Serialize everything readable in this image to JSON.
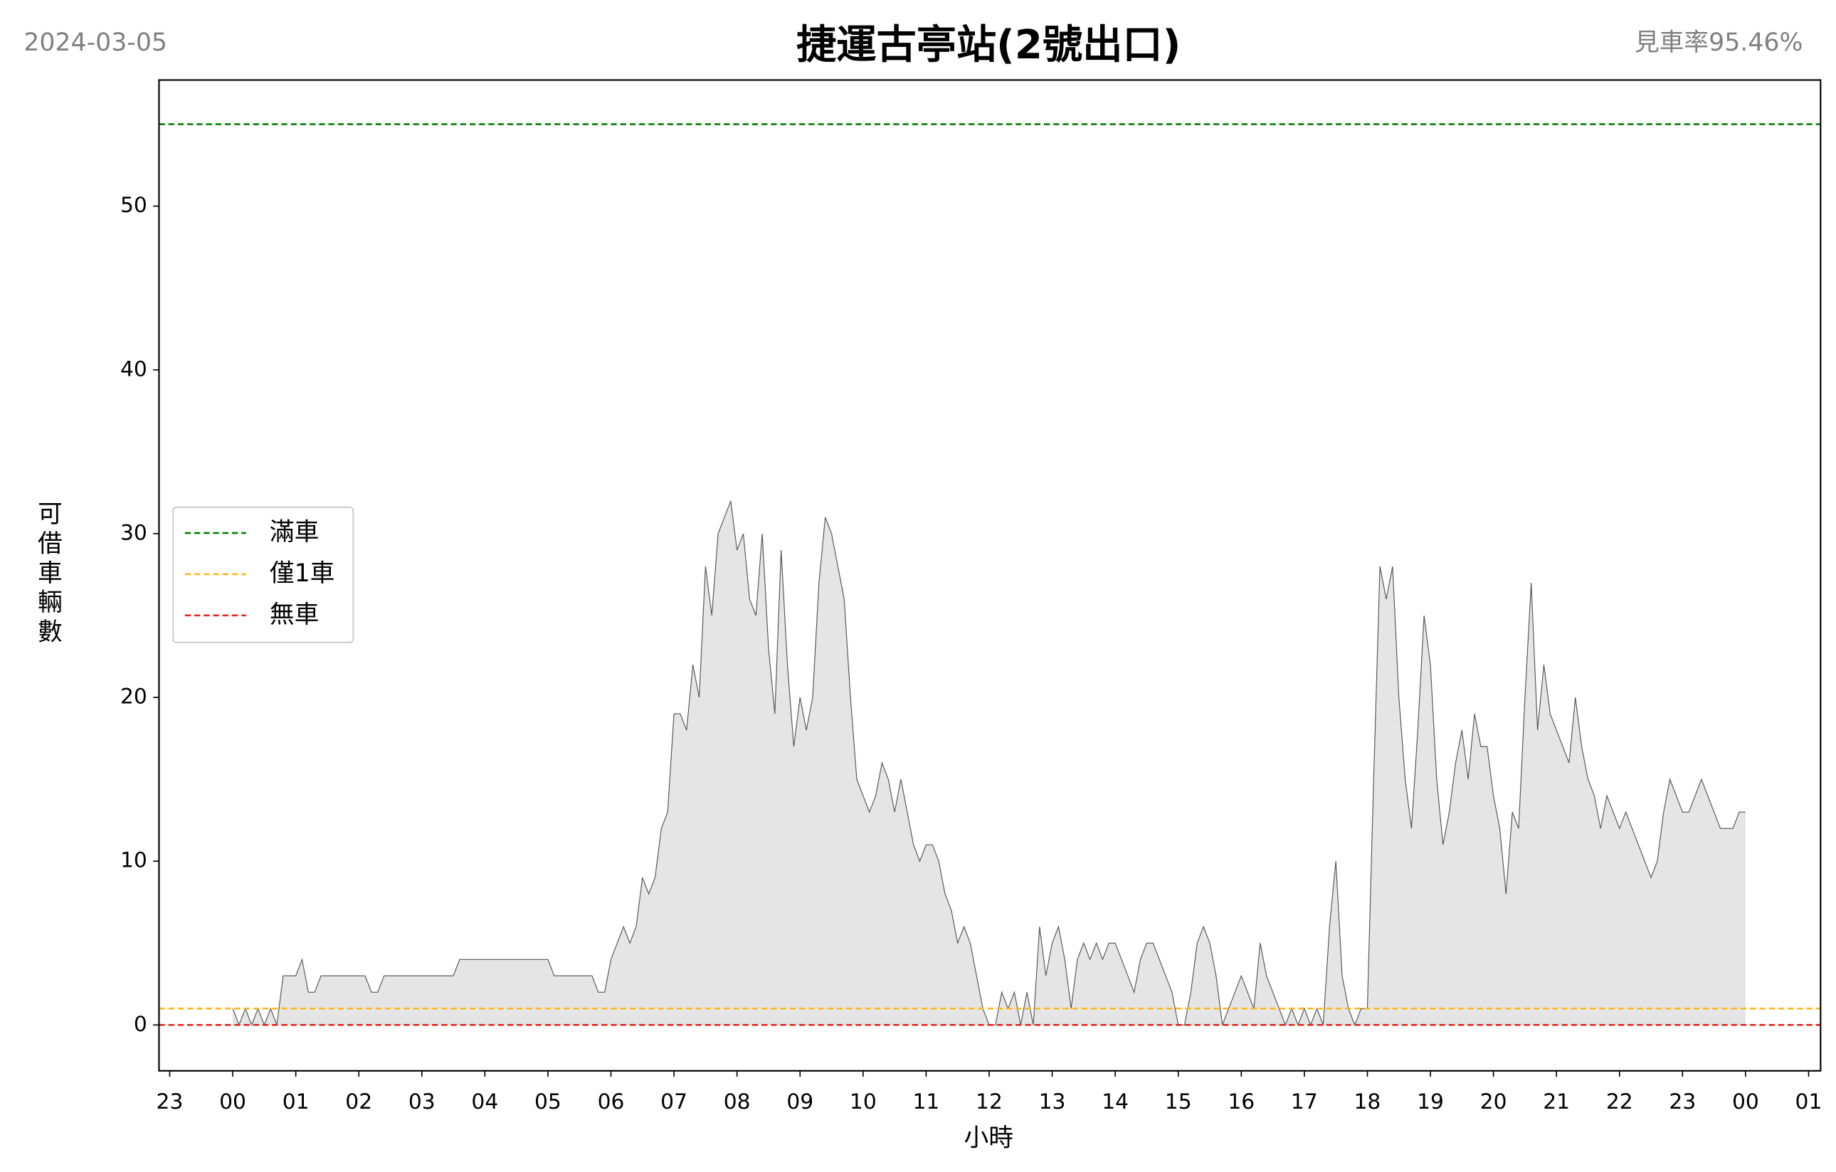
{
  "chart_data": {
    "type": "area",
    "title": "捷運古亭站(2號出口)",
    "date": "2024-03-05",
    "rate": "見車率95.46%",
    "xlabel": "小時",
    "ylabel": "可借車輛數",
    "xlim": [
      -1.17,
      25.19
    ],
    "ylim": [
      -2.8,
      57.7
    ],
    "yticks": [
      0,
      10,
      20,
      30,
      40,
      50
    ],
    "xticks": [
      {
        "value": -1,
        "label": "23"
      },
      {
        "value": 0,
        "label": "00"
      },
      {
        "value": 1,
        "label": "01"
      },
      {
        "value": 2,
        "label": "02"
      },
      {
        "value": 3,
        "label": "03"
      },
      {
        "value": 4,
        "label": "04"
      },
      {
        "value": 5,
        "label": "05"
      },
      {
        "value": 6,
        "label": "06"
      },
      {
        "value": 7,
        "label": "07"
      },
      {
        "value": 8,
        "label": "08"
      },
      {
        "value": 9,
        "label": "09"
      },
      {
        "value": 10,
        "label": "10"
      },
      {
        "value": 11,
        "label": "11"
      },
      {
        "value": 12,
        "label": "12"
      },
      {
        "value": 13,
        "label": "13"
      },
      {
        "value": 14,
        "label": "14"
      },
      {
        "value": 15,
        "label": "15"
      },
      {
        "value": 16,
        "label": "16"
      },
      {
        "value": 17,
        "label": "17"
      },
      {
        "value": 18,
        "label": "18"
      },
      {
        "value": 19,
        "label": "19"
      },
      {
        "value": 20,
        "label": "20"
      },
      {
        "value": 21,
        "label": "21"
      },
      {
        "value": 22,
        "label": "22"
      },
      {
        "value": 23,
        "label": "23"
      },
      {
        "value": 24,
        "label": "00"
      },
      {
        "value": 25,
        "label": "01"
      }
    ],
    "ref_lines": [
      {
        "name": "滿車",
        "value": 55,
        "color": "#008000"
      },
      {
        "name": "僅1車",
        "value": 1,
        "color": "#ffb81c"
      },
      {
        "name": "無車",
        "value": 0,
        "color": "#e8281e"
      }
    ],
    "legend": "center-left",
    "x": [
      0,
      0.1,
      0.2,
      0.3,
      0.4,
      0.5,
      0.6,
      0.7,
      0.8,
      0.9,
      1,
      1.1,
      1.2,
      1.3,
      1.4,
      1.5,
      1.6,
      1.7,
      1.8,
      1.9,
      2,
      2.1,
      2.2,
      2.3,
      2.4,
      2.5,
      2.6,
      2.7,
      2.8,
      2.9,
      3,
      3.1,
      3.2,
      3.3,
      3.4,
      3.5,
      3.6,
      3.7,
      3.8,
      3.9,
      4,
      4.1,
      4.2,
      4.3,
      4.4,
      4.5,
      4.6,
      4.7,
      4.8,
      4.9,
      5,
      5.1,
      5.2,
      5.3,
      5.4,
      5.5,
      5.6,
      5.7,
      5.8,
      5.9,
      6,
      6.1,
      6.2,
      6.3,
      6.4,
      6.5,
      6.6,
      6.7,
      6.8,
      6.9,
      7,
      7.1,
      7.2,
      7.3,
      7.4,
      7.5,
      7.6,
      7.7,
      7.8,
      7.9,
      8,
      8.1,
      8.2,
      8.3,
      8.4,
      8.5,
      8.6,
      8.7,
      8.8,
      8.9,
      9,
      9.1,
      9.2,
      9.3,
      9.4,
      9.5,
      9.6,
      9.7,
      9.8,
      9.9,
      10,
      10.1,
      10.2,
      10.3,
      10.4,
      10.5,
      10.6,
      10.7,
      10.8,
      10.9,
      11,
      11.1,
      11.2,
      11.3,
      11.4,
      11.5,
      11.6,
      11.7,
      11.8,
      11.9,
      12,
      12.1,
      12.2,
      12.3,
      12.4,
      12.5,
      12.6,
      12.7,
      12.8,
      12.9,
      13,
      13.1,
      13.2,
      13.3,
      13.4,
      13.5,
      13.6,
      13.7,
      13.8,
      13.9,
      14,
      14.1,
      14.2,
      14.3,
      14.4,
      14.5,
      14.6,
      14.7,
      14.8,
      14.9,
      15,
      15.1,
      15.2,
      15.3,
      15.4,
      15.5,
      15.6,
      15.7,
      15.8,
      15.9,
      16,
      16.1,
      16.2,
      16.3,
      16.4,
      16.5,
      16.6,
      16.7,
      16.8,
      16.9,
      17,
      17.1,
      17.2,
      17.3,
      17.4,
      17.5,
      17.6,
      17.7,
      17.8,
      17.9,
      18,
      18.1,
      18.2,
      18.3,
      18.4,
      18.5,
      18.6,
      18.7,
      18.8,
      18.9,
      19,
      19.1,
      19.2,
      19.3,
      19.4,
      19.5,
      19.6,
      19.7,
      19.8,
      19.9,
      20,
      20.1,
      20.2,
      20.3,
      20.4,
      20.5,
      20.6,
      20.7,
      20.8,
      20.9,
      21,
      21.1,
      21.2,
      21.3,
      21.4,
      21.5,
      21.6,
      21.7,
      21.8,
      21.9,
      22,
      22.1,
      22.2,
      22.3,
      22.4,
      22.5,
      22.6,
      22.7,
      22.8,
      22.9,
      23,
      23.1,
      23.2,
      23.3,
      23.4,
      23.5,
      23.6,
      23.7,
      23.8,
      23.9,
      24
    ],
    "series": [
      {
        "fill": "#e5e5e5",
        "color": "#555555",
        "values": [
          1,
          0,
          1,
          0,
          1,
          0,
          1,
          0,
          3,
          3,
          3,
          4,
          2,
          2,
          3,
          3,
          3,
          3,
          3,
          3,
          3,
          3,
          2,
          2,
          3,
          3,
          3,
          3,
          3,
          3,
          3,
          3,
          3,
          3,
          3,
          3,
          4,
          4,
          4,
          4,
          4,
          4,
          4,
          4,
          4,
          4,
          4,
          4,
          4,
          4,
          4,
          3,
          3,
          3,
          3,
          3,
          3,
          3,
          2,
          2,
          4,
          5,
          6,
          5,
          6,
          9,
          8,
          9,
          12,
          13,
          19,
          19,
          18,
          22,
          20,
          28,
          25,
          30,
          31,
          32,
          29,
          30,
          26,
          25,
          30,
          23,
          19,
          29,
          22,
          17,
          20,
          18,
          20,
          27,
          31,
          30,
          28,
          26,
          20,
          15,
          14,
          13,
          14,
          16,
          15,
          13,
          15,
          13,
          11,
          10,
          11,
          11,
          10,
          8,
          7,
          5,
          6,
          5,
          3,
          1,
          0,
          0,
          2,
          1,
          2,
          0,
          2,
          0,
          6,
          3,
          5,
          6,
          4,
          1,
          4,
          5,
          4,
          5,
          4,
          5,
          5,
          4,
          3,
          2,
          4,
          5,
          5,
          4,
          3,
          2,
          0,
          0,
          2,
          5,
          6,
          5,
          3,
          0,
          1,
          2,
          3,
          2,
          1,
          5,
          3,
          2,
          1,
          0,
          1,
          0,
          1,
          0,
          1,
          0,
          6,
          10,
          3,
          1,
          0,
          1,
          1,
          15,
          28,
          26,
          28,
          20,
          15,
          12,
          18,
          25,
          22,
          15,
          11,
          13,
          16,
          18,
          15,
          19,
          17,
          17,
          14,
          12,
          8,
          13,
          12,
          20,
          27,
          18,
          22,
          19,
          18,
          17,
          16,
          20,
          17,
          15,
          14,
          12,
          14,
          13,
          12,
          13,
          12,
          11,
          10,
          9,
          10,
          13,
          15,
          14,
          13,
          13,
          14,
          15,
          14,
          13,
          12,
          12,
          12,
          13,
          13
        ]
      }
    ]
  }
}
